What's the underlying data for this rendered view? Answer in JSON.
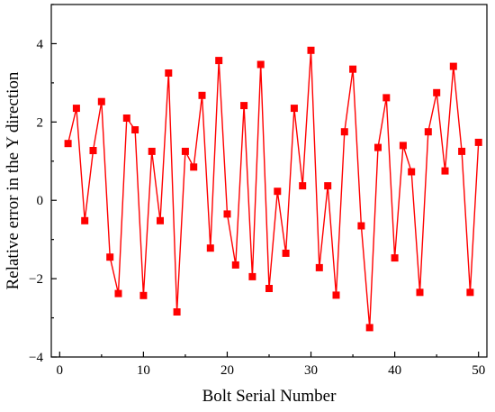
{
  "chart_data": {
    "type": "line",
    "title": "",
    "xlabel": "Bolt Serial Number",
    "ylabel": "Relative error in the Y direction",
    "xlim": [
      -1,
      51
    ],
    "ylim": [
      -4,
      5
    ],
    "x_ticks": [
      0,
      10,
      20,
      30,
      40,
      50
    ],
    "y_ticks": [
      -4,
      -2,
      0,
      2,
      4
    ],
    "x_tick_labels": [
      "0",
      "10",
      "20",
      "30",
      "40",
      "50"
    ],
    "y_tick_labels": [
      "−4",
      "−2",
      "0",
      "2",
      "4"
    ],
    "grid": false,
    "legend": "none",
    "marker": "square",
    "color": "#ff0000",
    "series": [
      {
        "x": [
          1,
          2,
          3,
          4,
          5,
          6,
          7,
          8,
          9,
          10,
          11,
          12,
          13,
          14,
          15,
          16,
          17,
          18,
          19,
          20,
          21,
          22,
          23,
          24,
          25,
          26,
          27,
          28,
          29,
          30,
          31,
          32,
          33,
          34,
          35,
          36,
          37,
          38,
          39,
          40,
          41,
          42,
          43,
          44,
          45,
          46,
          47,
          48,
          49,
          50
        ],
        "values": [
          1.45,
          2.35,
          -0.52,
          1.27,
          2.52,
          -1.45,
          -2.38,
          2.1,
          1.8,
          -2.43,
          1.25,
          -0.52,
          3.25,
          -2.85,
          1.25,
          0.85,
          2.68,
          -1.22,
          3.57,
          -0.35,
          -1.65,
          2.42,
          -1.95,
          3.47,
          -2.25,
          0.23,
          -1.35,
          2.35,
          0.37,
          3.83,
          -1.72,
          0.37,
          -2.42,
          1.75,
          3.35,
          -0.65,
          -3.25,
          1.35,
          2.62,
          -1.47,
          1.4,
          0.73,
          -2.35,
          1.75,
          2.75,
          0.75,
          3.42,
          1.25,
          -2.35,
          1.48
        ]
      }
    ]
  }
}
